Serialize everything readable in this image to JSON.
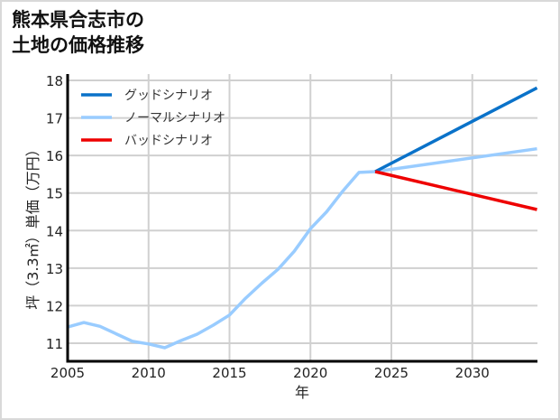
{
  "header": {
    "title_line1": "熊本県合志市の",
    "title_line2": "土地の価格推移"
  },
  "colors": {
    "good": "#0a72c9",
    "normal": "#99ccff",
    "bad": "#ee0000",
    "grid": "#d0d0d0",
    "axis": "#000000"
  },
  "chart_data": {
    "type": "line",
    "title": "熊本県合志市の土地の価格推移",
    "xlabel": "年",
    "ylabel": "坪（3.3㎡）単価（万円）",
    "xlim": [
      2005,
      2034
    ],
    "ylim": [
      10.5,
      18.1
    ],
    "x_ticks": [
      2005,
      2010,
      2015,
      2020,
      2025,
      2030
    ],
    "y_ticks": [
      11,
      12,
      13,
      14,
      15,
      16,
      17,
      18
    ],
    "grid": true,
    "legend_position": "upper left",
    "series": [
      {
        "name": "ノーマルシナリオ",
        "color": "#99ccff",
        "x": [
          2005,
          2006,
          2007,
          2008,
          2009,
          2010,
          2011,
          2012,
          2013,
          2014,
          2015,
          2016,
          2017,
          2018,
          2019,
          2020,
          2021,
          2022,
          2023,
          2024,
          2034
        ],
        "values": [
          11.43,
          11.55,
          11.45,
          11.25,
          11.05,
          10.98,
          10.88,
          11.07,
          11.24,
          11.48,
          11.75,
          12.2,
          12.6,
          12.97,
          13.45,
          14.05,
          14.5,
          15.05,
          15.55,
          15.57,
          16.18
        ]
      },
      {
        "name": "グッドシナリオ",
        "color": "#0a72c9",
        "x": [
          2024,
          2034
        ],
        "values": [
          15.57,
          17.8
        ]
      },
      {
        "name": "バッドシナリオ",
        "color": "#ee0000",
        "x": [
          2024,
          2034
        ],
        "values": [
          15.57,
          14.56
        ]
      }
    ],
    "legend": [
      "グッドシナリオ",
      "ノーマルシナリオ",
      "バッドシナリオ"
    ]
  }
}
